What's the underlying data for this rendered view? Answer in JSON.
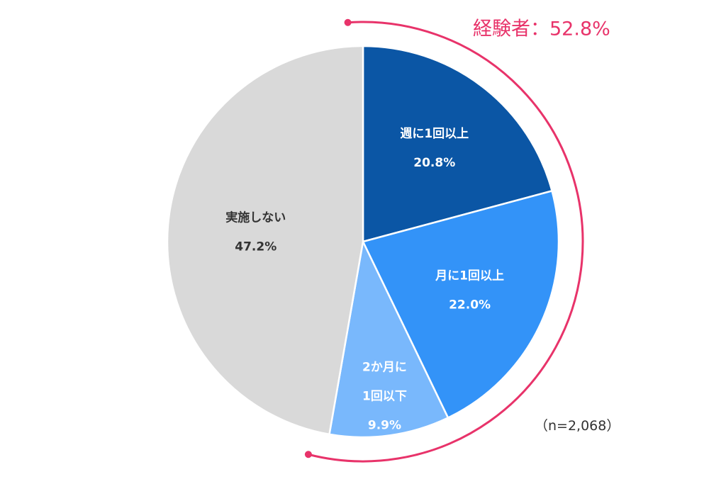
{
  "chart_data": {
    "type": "pie",
    "slices": [
      {
        "label_lines": [
          "週に1回以上"
        ],
        "value": 20.8,
        "value_text": "20.8%",
        "color": "#0b56a5",
        "text_color": "#ffffff"
      },
      {
        "label_lines": [
          "月に1回以上"
        ],
        "value": 22.0,
        "value_text": "22.0%",
        "color": "#3393f8",
        "text_color": "#ffffff"
      },
      {
        "label_lines": [
          "2か月に",
          "1回以下"
        ],
        "value": 9.9,
        "value_text": "9.9%",
        "color": "#79b8fc",
        "text_color": "#ffffff"
      },
      {
        "label_lines": [
          "実施しない"
        ],
        "value": 47.2,
        "value_text": "47.2%",
        "color": "#d9d9d9",
        "text_color": "#333333"
      }
    ],
    "start_angle": "12 o'clock",
    "direction": "clockwise",
    "bracket": {
      "label": "経験者：52.8%",
      "value": 52.8,
      "color": "#e8336a"
    },
    "sample_note": "（n=2,068）"
  }
}
